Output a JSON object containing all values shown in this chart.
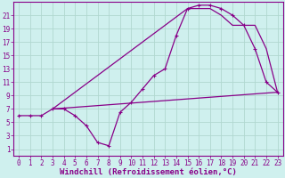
{
  "xlabel": "Windchill (Refroidissement éolien,°C)",
  "bg_color": "#cff0ee",
  "grid_color": "#b0d8d0",
  "line_color": "#880088",
  "xlim": [
    -0.5,
    23.5
  ],
  "ylim": [
    0,
    23
  ],
  "yticks": [
    1,
    3,
    5,
    7,
    9,
    11,
    13,
    15,
    17,
    19,
    21
  ],
  "xticks": [
    0,
    1,
    2,
    3,
    4,
    5,
    6,
    7,
    8,
    9,
    10,
    11,
    12,
    13,
    14,
    15,
    16,
    17,
    18,
    19,
    20,
    21,
    22,
    23
  ],
  "line1_x": [
    0,
    1,
    2,
    3,
    4,
    5,
    6,
    7,
    8,
    9,
    10,
    11,
    12,
    13,
    14,
    15,
    16,
    17,
    18,
    19,
    20,
    21,
    22,
    23
  ],
  "line1_y": [
    6,
    6,
    6,
    7,
    7,
    6,
    4.5,
    2,
    1.5,
    6.5,
    8,
    10,
    12,
    13,
    18,
    22,
    22.5,
    22.5,
    22,
    21,
    19.5,
    16,
    11,
    9.5
  ],
  "line2_x": [
    3,
    23
  ],
  "line2_y": [
    7,
    9.5
  ],
  "line3_x": [
    3,
    15,
    17,
    18,
    19,
    20,
    21,
    22,
    23
  ],
  "line3_y": [
    7,
    22,
    22,
    21,
    19.5,
    19.5,
    19.5,
    16,
    9.5
  ],
  "tick_fontsize": 5.5,
  "xlabel_fontsize": 6.5
}
